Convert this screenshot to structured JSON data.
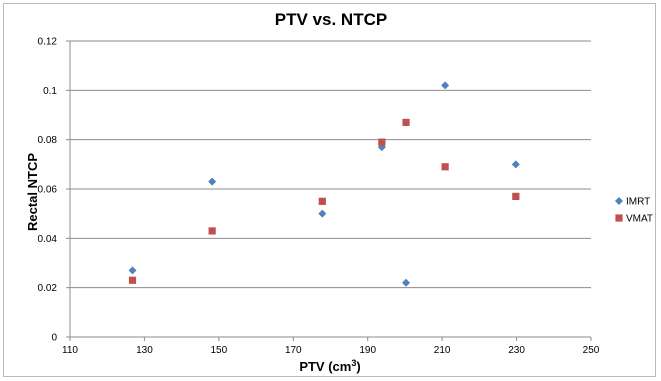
{
  "chart_data": {
    "type": "scatter",
    "title": "PTV vs. NTCP",
    "xlabel": "PTV (cm³)",
    "xlabel_main": "PTV (cm",
    "xlabel_sup": "3",
    "xlabel_close": ")",
    "ylabel": "Rectal NTCP",
    "xlim": [
      110,
      250
    ],
    "ylim": [
      0,
      0.12
    ],
    "xticks": [
      "110",
      "130",
      "150",
      "170",
      "190",
      "210",
      "230",
      "250"
    ],
    "yticks": [
      "0",
      "0.02",
      "0.04",
      "0.06",
      "0.08",
      "0.1",
      "0.12"
    ],
    "grid": "horizontal",
    "legend_position": "right",
    "series": [
      {
        "name": "IMRT",
        "marker": "diamond",
        "color": "#4f81bd",
        "x": [
          126.8,
          148.2,
          177.8,
          193.8,
          200.3,
          210.8,
          229.8
        ],
        "y": [
          0.027,
          0.063,
          0.05,
          0.077,
          0.022,
          0.102,
          0.07
        ]
      },
      {
        "name": "VMAT",
        "marker": "square",
        "color": "#c0504d",
        "x": [
          126.8,
          148.2,
          177.8,
          193.8,
          200.3,
          210.8,
          229.8
        ],
        "y": [
          0.023,
          0.043,
          0.055,
          0.079,
          0.087,
          0.069,
          0.057
        ]
      }
    ]
  }
}
